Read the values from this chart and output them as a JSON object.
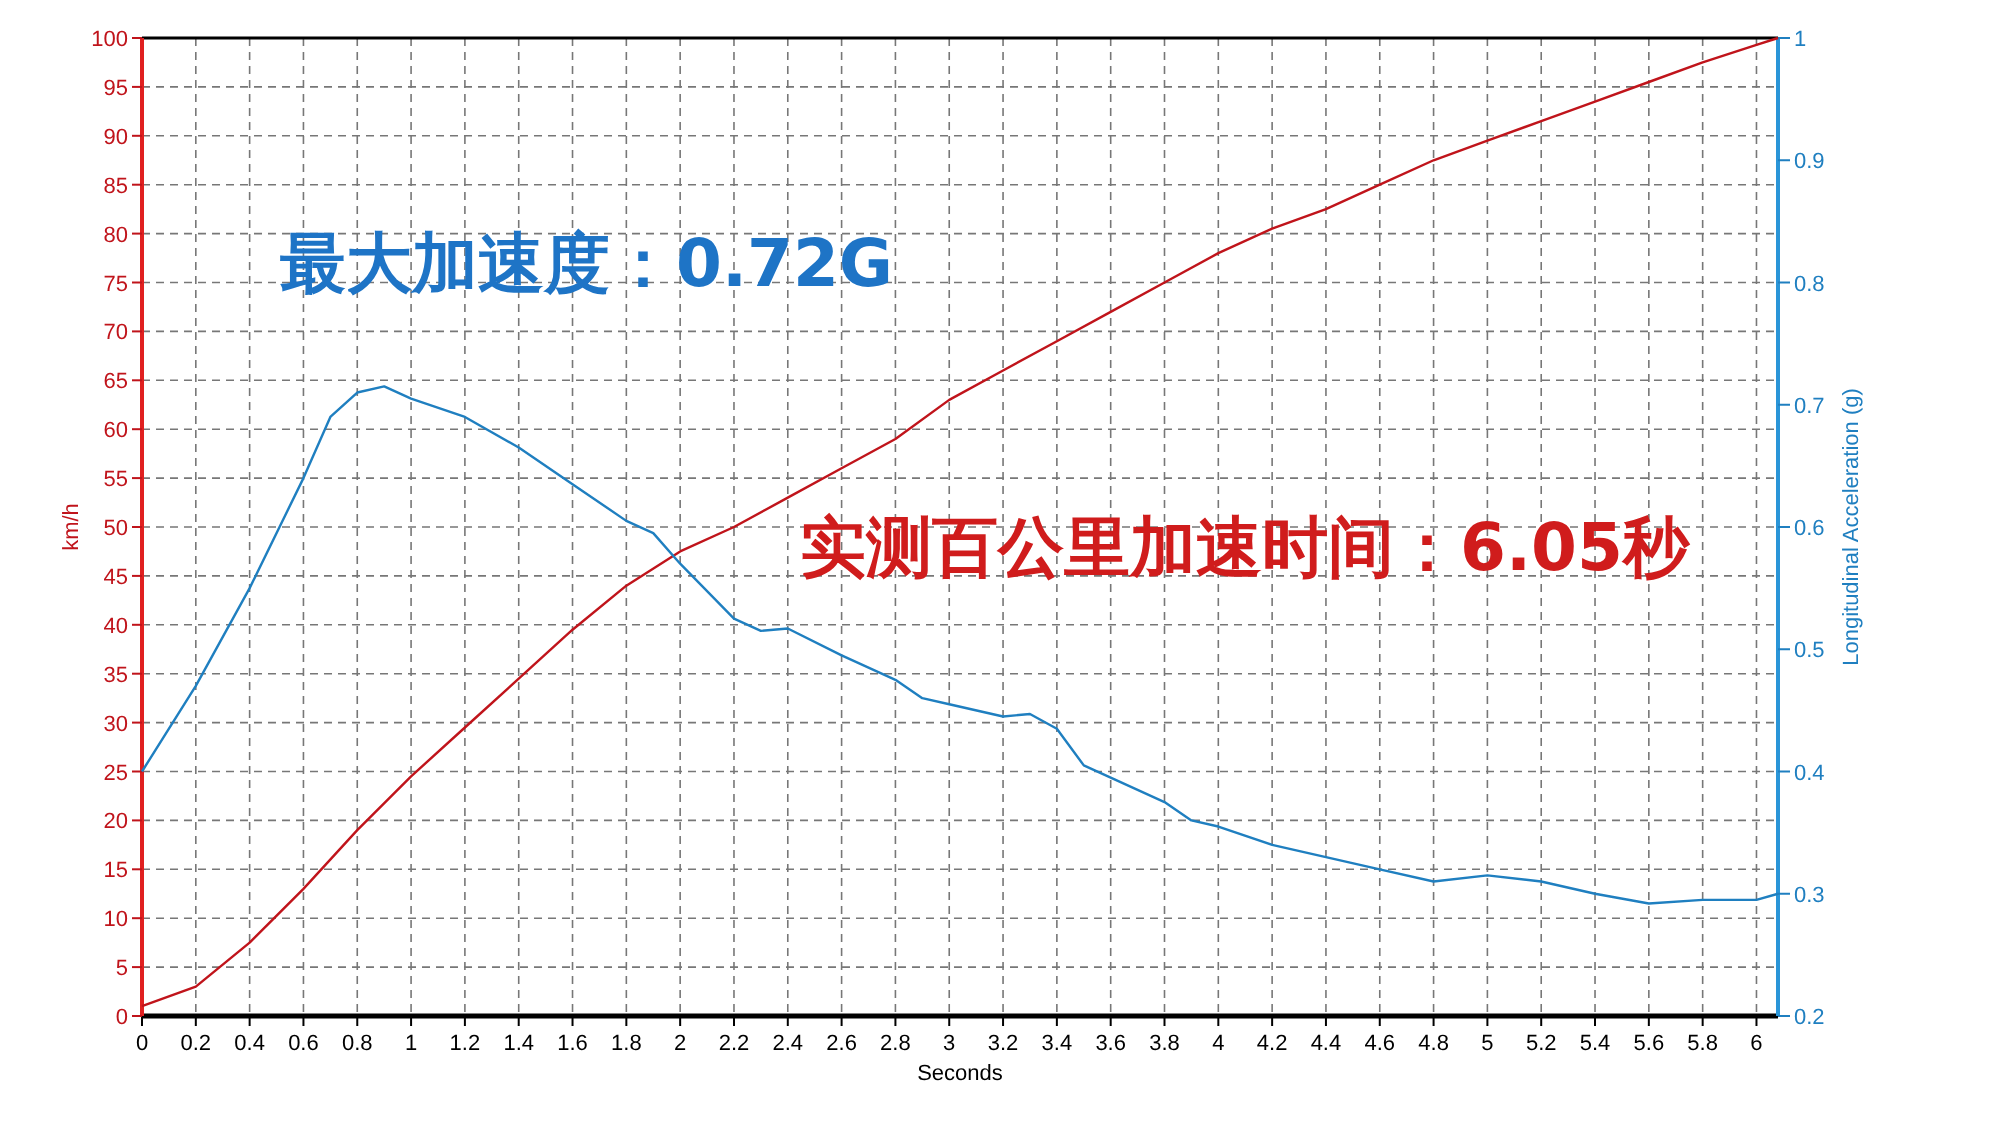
{
  "chart_data": {
    "type": "line",
    "xlabel": "Seconds",
    "ylabel": "km/h",
    "y2label": "Longitudinal Acceleration (g)",
    "xlim": [
      0,
      6.08
    ],
    "xticks": [
      0,
      0.2,
      0.4,
      0.6,
      0.8,
      1,
      1.2,
      1.4,
      1.6,
      1.8,
      2,
      2.2,
      2.4,
      2.6,
      2.8,
      3,
      3.2,
      3.4,
      3.6,
      3.8,
      4,
      4.2,
      4.4,
      4.6,
      4.8,
      5,
      5.2,
      5.4,
      5.6,
      5.8,
      6
    ],
    "ylim": [
      0,
      100
    ],
    "yticks": [
      0,
      5,
      10,
      15,
      20,
      25,
      30,
      35,
      40,
      45,
      50,
      55,
      60,
      65,
      70,
      75,
      80,
      85,
      90,
      95,
      100
    ],
    "y2lim": [
      0.2,
      1
    ],
    "y2ticks": [
      0.2,
      0.3,
      0.4,
      0.5,
      0.6,
      0.7,
      0.8,
      0.9,
      1
    ],
    "grid": true,
    "marker": "none",
    "line_style": "solid",
    "series": [
      {
        "color": "#c0141b",
        "x": [
          0,
          0.2,
          0.4,
          0.6,
          0.8,
          1,
          1.2,
          1.4,
          1.6,
          1.8,
          2,
          2.2,
          2.4,
          2.6,
          2.8,
          3,
          3.2,
          3.4,
          3.6,
          3.8,
          4,
          4.2,
          4.4,
          4.6,
          4.8,
          5,
          5.2,
          5.4,
          5.6,
          5.8,
          6,
          6.08
        ],
        "values": [
          1,
          3,
          7.5,
          13,
          19,
          24.5,
          29.5,
          34.5,
          39.5,
          44,
          47.5,
          50,
          53,
          56,
          59,
          63,
          66,
          69,
          72,
          75,
          78,
          80.5,
          82.5,
          85,
          87.5,
          89.5,
          91.5,
          93.5,
          95.5,
          97.5,
          99.3,
          100
        ]
      },
      {
        "color": "#1f7fc0",
        "axis": "y2",
        "x": [
          0,
          0.2,
          0.4,
          0.6,
          0.7,
          0.8,
          0.9,
          1,
          1.2,
          1.4,
          1.6,
          1.8,
          1.9,
          2,
          2.2,
          2.3,
          2.4,
          2.6,
          2.8,
          2.9,
          3,
          3.2,
          3.3,
          3.4,
          3.5,
          3.6,
          3.8,
          3.9,
          4,
          4.2,
          4.4,
          4.6,
          4.8,
          5,
          5.2,
          5.4,
          5.6,
          5.8,
          6,
          6.08
        ],
        "values": [
          0.4,
          0.47,
          0.55,
          0.64,
          0.69,
          0.71,
          0.715,
          0.705,
          0.69,
          0.665,
          0.635,
          0.605,
          0.595,
          0.57,
          0.525,
          0.515,
          0.517,
          0.495,
          0.475,
          0.46,
          0.455,
          0.445,
          0.447,
          0.435,
          0.405,
          0.395,
          0.375,
          0.36,
          0.355,
          0.34,
          0.33,
          0.32,
          0.31,
          0.315,
          0.31,
          0.3,
          0.292,
          0.295,
          0.295,
          0.3
        ]
      }
    ],
    "annotations": [
      "最大加速度：0.72G",
      "实测百公里加速时间：6.05秒"
    ]
  }
}
